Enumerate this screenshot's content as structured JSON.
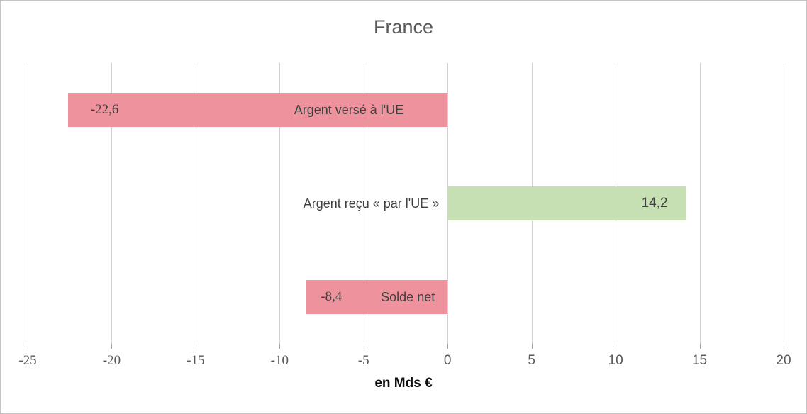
{
  "chart_data": {
    "type": "bar",
    "orientation": "horizontal",
    "title": "France",
    "xlabel": "en Mds €",
    "categories": [
      "Argent versé à l'UE",
      "Argent reçu « par l'UE »",
      "Solde net"
    ],
    "values": [
      -22.6,
      14.2,
      -8.4
    ],
    "value_labels": [
      "-22,6",
      "14,2",
      "-8,4"
    ],
    "bar_colors": [
      "#ee929d",
      "#c6e0b4",
      "#ee929d"
    ],
    "xlim": [
      -25,
      20
    ],
    "xticks": [
      -25,
      -20,
      -15,
      -10,
      -5,
      0,
      5,
      10,
      15,
      20
    ],
    "xtick_labels": [
      "-25",
      "-20",
      "-15",
      "-10",
      "-5",
      "0",
      "5",
      "10",
      "15",
      "20"
    ],
    "grid": true,
    "legend": false,
    "colors": {
      "negative_bar": "#ee929d",
      "positive_bar": "#c6e0b4",
      "gridline": "#d0d0d0",
      "tick_mark": "#9e9e9e",
      "title_text": "#595959",
      "axis_tick_text": "#595959",
      "bar_label_text": "#3f3f3f",
      "xlabel_text": "#0d0d0d"
    },
    "label_layout": [
      {
        "value_side": "far-end",
        "value_pad": 32,
        "category_placement": "inside-base",
        "category_pad": 62
      },
      {
        "value_side": "inside-end",
        "value_pad": 26,
        "category_placement": "outside-base",
        "category_pad": 12
      },
      {
        "value_side": "far-end",
        "value_pad": 20,
        "category_placement": "inside-base",
        "category_pad": 18
      }
    ]
  }
}
